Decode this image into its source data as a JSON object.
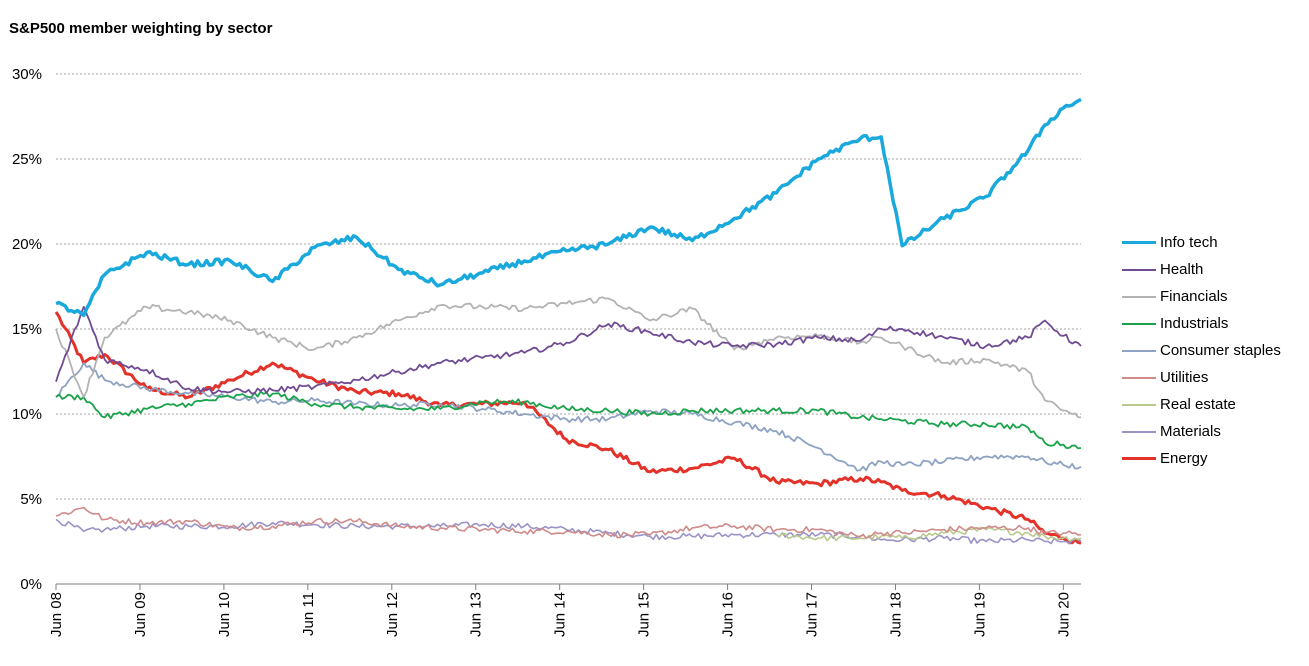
{
  "chart_data": {
    "type": "line",
    "title": "S&P500 member weighting by sector",
    "xlabel": "",
    "ylabel": "",
    "ylim": [
      0,
      30
    ],
    "yticks": [
      "0%",
      "5%",
      "10%",
      "15%",
      "20%",
      "25%",
      "30%"
    ],
    "xlim": [
      2008.42,
      2020.63
    ],
    "xticks": [
      "Jun 08",
      "Jun 09",
      "Jun 10",
      "Jun 11",
      "Jun 12",
      "Jun 13",
      "Jun 14",
      "Jun 15",
      "Jun 16",
      "Jun 17",
      "Jun 18",
      "Jun 19",
      "Jun 20"
    ],
    "grid": "horizontal-dashed",
    "legend": "right",
    "x": [
      2008.42,
      2008.75,
      2009.0,
      2009.5,
      2010.0,
      2010.5,
      2011.0,
      2011.5,
      2012.0,
      2012.5,
      2013.0,
      2013.5,
      2014.0,
      2014.5,
      2015.0,
      2015.5,
      2016.0,
      2016.5,
      2017.0,
      2017.5,
      2018.0,
      2018.25,
      2018.5,
      2019.0,
      2019.5,
      2020.0,
      2020.2,
      2020.42,
      2020.63
    ],
    "series": [
      {
        "name": "Info tech",
        "color": "#1aa9dc",
        "width": 3.5,
        "values": [
          16.5,
          15.8,
          18.2,
          19.5,
          18.8,
          19.0,
          17.8,
          19.8,
          20.4,
          18.5,
          17.6,
          18.3,
          19.0,
          19.6,
          20.0,
          21.0,
          20.2,
          21.5,
          23.0,
          25.0,
          26.2,
          26.3,
          19.9,
          21.5,
          22.8,
          25.5,
          27.0,
          28.0,
          28.5
        ]
      },
      {
        "name": "Health",
        "color": "#6f4b94",
        "width": 1.8,
        "values": [
          11.9,
          16.3,
          13.2,
          12.6,
          11.5,
          11.3,
          11.4,
          11.6,
          12.0,
          12.5,
          13.0,
          13.3,
          13.6,
          14.2,
          15.3,
          14.8,
          14.2,
          14.0,
          14.1,
          14.5,
          14.3,
          15.0,
          15.0,
          14.5,
          14.0,
          14.5,
          15.5,
          14.6,
          14.0
        ]
      },
      {
        "name": "Financials",
        "color": "#b3b3b3",
        "width": 1.8,
        "values": [
          15.0,
          11.0,
          14.5,
          16.3,
          16.0,
          15.5,
          14.5,
          13.8,
          14.5,
          15.5,
          16.4,
          16.3,
          16.2,
          16.5,
          16.8,
          15.5,
          16.2,
          13.8,
          14.5,
          14.6,
          14.2,
          14.5,
          14.0,
          13.0,
          13.2,
          12.5,
          10.8,
          10.2,
          9.8
        ]
      },
      {
        "name": "Industrials",
        "color": "#1aa34a",
        "width": 1.8,
        "values": [
          11.0,
          11.0,
          9.8,
          10.3,
          10.6,
          11.0,
          11.2,
          10.6,
          10.4,
          10.3,
          10.3,
          10.7,
          10.7,
          10.3,
          10.2,
          10.0,
          10.2,
          10.2,
          10.2,
          10.2,
          9.8,
          9.7,
          9.6,
          9.4,
          9.4,
          9.2,
          8.3,
          8.2,
          8.0
        ]
      },
      {
        "name": "Consumer staples",
        "color": "#8ea2c2",
        "width": 1.8,
        "values": [
          11.0,
          13.0,
          12.0,
          11.5,
          11.2,
          11.0,
          10.7,
          10.8,
          10.6,
          10.5,
          10.6,
          10.3,
          10.0,
          9.7,
          9.7,
          10.2,
          10.0,
          9.5,
          9.0,
          8.0,
          6.7,
          7.2,
          7.0,
          7.2,
          7.5,
          7.5,
          7.2,
          7.0,
          6.9
        ]
      },
      {
        "name": "Utilities",
        "color": "#d08a8a",
        "width": 1.6,
        "values": [
          4.0,
          4.5,
          3.8,
          3.6,
          3.7,
          3.3,
          3.4,
          3.7,
          3.7,
          3.4,
          3.3,
          3.2,
          3.1,
          3.1,
          2.9,
          2.9,
          3.3,
          3.4,
          3.2,
          3.2,
          2.8,
          3.0,
          3.0,
          3.2,
          3.3,
          3.3,
          3.0,
          3.0,
          2.9
        ]
      },
      {
        "name": "Real estate",
        "color": "#b9c98e",
        "width": 1.6,
        "values": [
          null,
          null,
          null,
          null,
          null,
          null,
          null,
          null,
          null,
          null,
          null,
          null,
          null,
          null,
          null,
          null,
          null,
          null,
          2.9,
          2.7,
          2.7,
          2.8,
          2.7,
          3.0,
          3.2,
          3.0,
          2.8,
          2.7,
          2.7
        ]
      },
      {
        "name": "Materials",
        "color": "#9a93c6",
        "width": 1.6,
        "values": [
          3.8,
          3.1,
          3.2,
          3.4,
          3.4,
          3.4,
          3.6,
          3.5,
          3.4,
          3.4,
          3.4,
          3.5,
          3.4,
          3.2,
          3.0,
          2.8,
          2.8,
          2.9,
          2.9,
          2.9,
          2.8,
          2.6,
          2.6,
          2.7,
          2.5,
          2.6,
          2.5,
          2.5,
          2.5
        ]
      },
      {
        "name": "Energy",
        "color": "#e3322a",
        "width": 3,
        "values": [
          16.0,
          13.0,
          13.5,
          11.5,
          11.0,
          12.0,
          13.0,
          12.0,
          11.3,
          11.2,
          10.5,
          10.6,
          10.7,
          8.5,
          7.9,
          6.6,
          6.8,
          7.4,
          6.0,
          5.9,
          6.2,
          6.0,
          5.5,
          5.2,
          4.5,
          3.8,
          3.0,
          2.7,
          2.4
        ]
      }
    ]
  }
}
